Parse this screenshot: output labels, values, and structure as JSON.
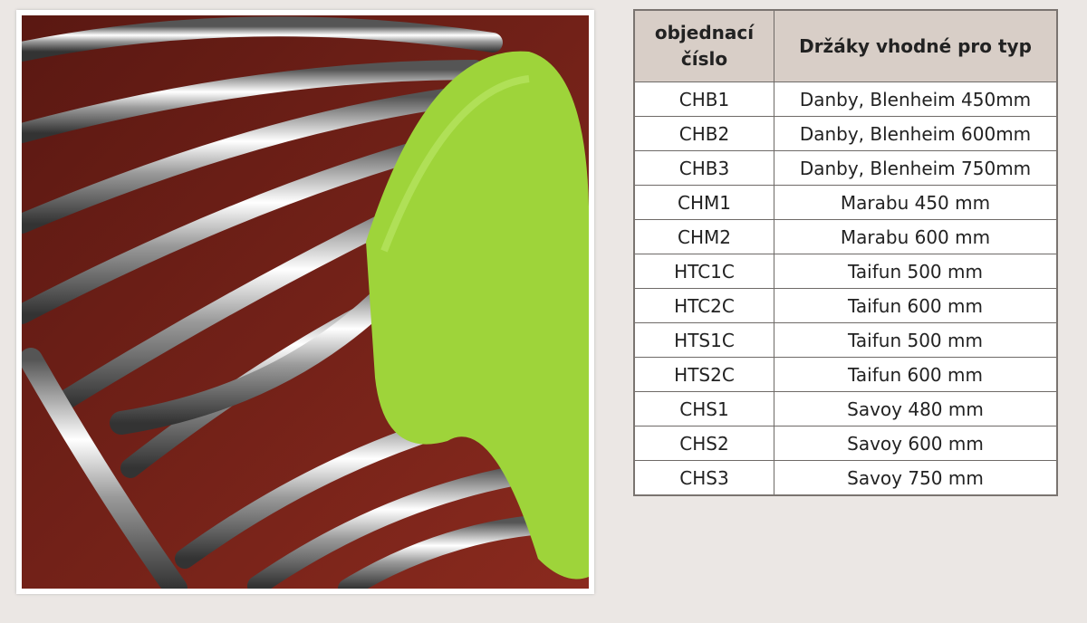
{
  "table": {
    "headers": [
      "objednací číslo",
      "Držáky vhodné pro typ"
    ],
    "rows": [
      [
        "CHB1",
        "Danby, Blenheim 450mm"
      ],
      [
        "CHB2",
        "Danby, Blenheim 600mm"
      ],
      [
        "CHB3",
        "Danby, Blenheim 750mm"
      ],
      [
        "CHM1",
        "Marabu 450 mm"
      ],
      [
        "CHM2",
        "Marabu 600 mm"
      ],
      [
        "HTC1C",
        "Taifun 500 mm"
      ],
      [
        "HTC2C",
        "Taifun 600 mm"
      ],
      [
        "HTS1C",
        "Taifun 500 mm"
      ],
      [
        "HTS2C",
        "Taifun 600 mm"
      ],
      [
        "CHS1",
        "Savoy 480 mm"
      ],
      [
        "CHS2",
        "Savoy 600 mm"
      ],
      [
        "CHS3",
        "Savoy 750 mm"
      ]
    ]
  },
  "colors": {
    "wall": "#6b1f17",
    "towel": "#9ed43a",
    "header_bg": "#d8cec7"
  }
}
